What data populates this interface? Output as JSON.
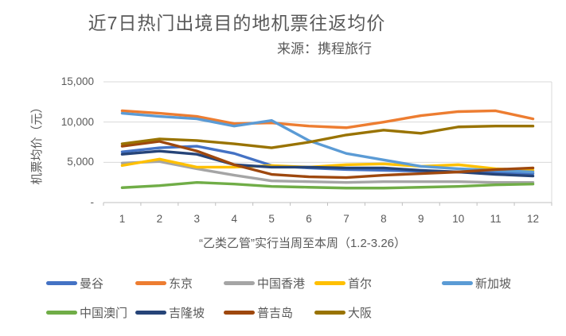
{
  "title": "近7日热门出境目的地机票往返均价",
  "source": "来源：携程旅行",
  "chart_data": {
    "type": "line",
    "title": "近7日热门出境目的地机票往返均价",
    "subtitle": "来源：携程旅行",
    "xlabel": "“乙类乙管”实行当周至本周（1.2-3.26）",
    "ylabel": "机票均价（元）",
    "x": [
      1,
      2,
      3,
      4,
      5,
      6,
      7,
      8,
      9,
      10,
      11,
      12
    ],
    "ylim": [
      0,
      15000
    ],
    "yticks": [
      {
        "value": 15000,
        "label": "15,000"
      },
      {
        "value": 10000,
        "label": "10,000"
      },
      {
        "value": 5000,
        "label": "5,000"
      },
      {
        "value": 0,
        "label": "-"
      }
    ],
    "grid": true,
    "grid_color": "#D9D9D9",
    "axis_color": "#BFBFBF",
    "text_color": "#595959",
    "legend_position": "bottom",
    "series": [
      {
        "key": "bangkok",
        "name": "曼谷",
        "color": "#4472C4",
        "values": [
          6300,
          6800,
          7000,
          6100,
          4600,
          4300,
          4100,
          4000,
          3900,
          3800,
          3700,
          3600
        ]
      },
      {
        "key": "tokyo",
        "name": "东京",
        "color": "#ED7D31",
        "values": [
          11400,
          11100,
          10700,
          9800,
          9900,
          9500,
          9300,
          10000,
          10800,
          11300,
          11400,
          10400
        ]
      },
      {
        "key": "hongkong",
        "name": "中国香港",
        "color": "#A5A5A5",
        "values": [
          4900,
          5100,
          4200,
          3400,
          2700,
          2600,
          2500,
          2600,
          2600,
          2600,
          2500,
          2500
        ]
      },
      {
        "key": "seoul",
        "name": "首尔",
        "color": "#FFC000",
        "values": [
          4600,
          5400,
          4400,
          4400,
          4600,
          4400,
          4700,
          4800,
          4500,
          4700,
          4200,
          4000
        ]
      },
      {
        "key": "singapore",
        "name": "新加坡",
        "color": "#5B9BD5",
        "values": [
          11100,
          10700,
          10400,
          9500,
          10200,
          7700,
          6100,
          5300,
          4500,
          4200,
          4000,
          3800
        ]
      },
      {
        "key": "macau",
        "name": "中国澳门",
        "color": "#70AD47",
        "values": [
          1850,
          2100,
          2500,
          2300,
          2000,
          1900,
          1800,
          1800,
          1900,
          2000,
          2200,
          2300
        ]
      },
      {
        "key": "kuala-lumpur",
        "name": "吉隆坡",
        "color": "#264478",
        "values": [
          6000,
          6400,
          6000,
          4700,
          4400,
          4400,
          4300,
          4300,
          4000,
          3800,
          3500,
          3300
        ]
      },
      {
        "key": "phuket",
        "name": "普吉岛",
        "color": "#9E480E",
        "values": [
          7000,
          7600,
          6400,
          4700,
          3500,
          3200,
          3100,
          3400,
          3600,
          3800,
          4100,
          4300
        ]
      },
      {
        "key": "osaka",
        "name": "大阪",
        "color": "#997300",
        "values": [
          7300,
          7900,
          7700,
          7300,
          6800,
          7500,
          8400,
          9000,
          8600,
          9400,
          9500,
          9500
        ]
      }
    ]
  }
}
